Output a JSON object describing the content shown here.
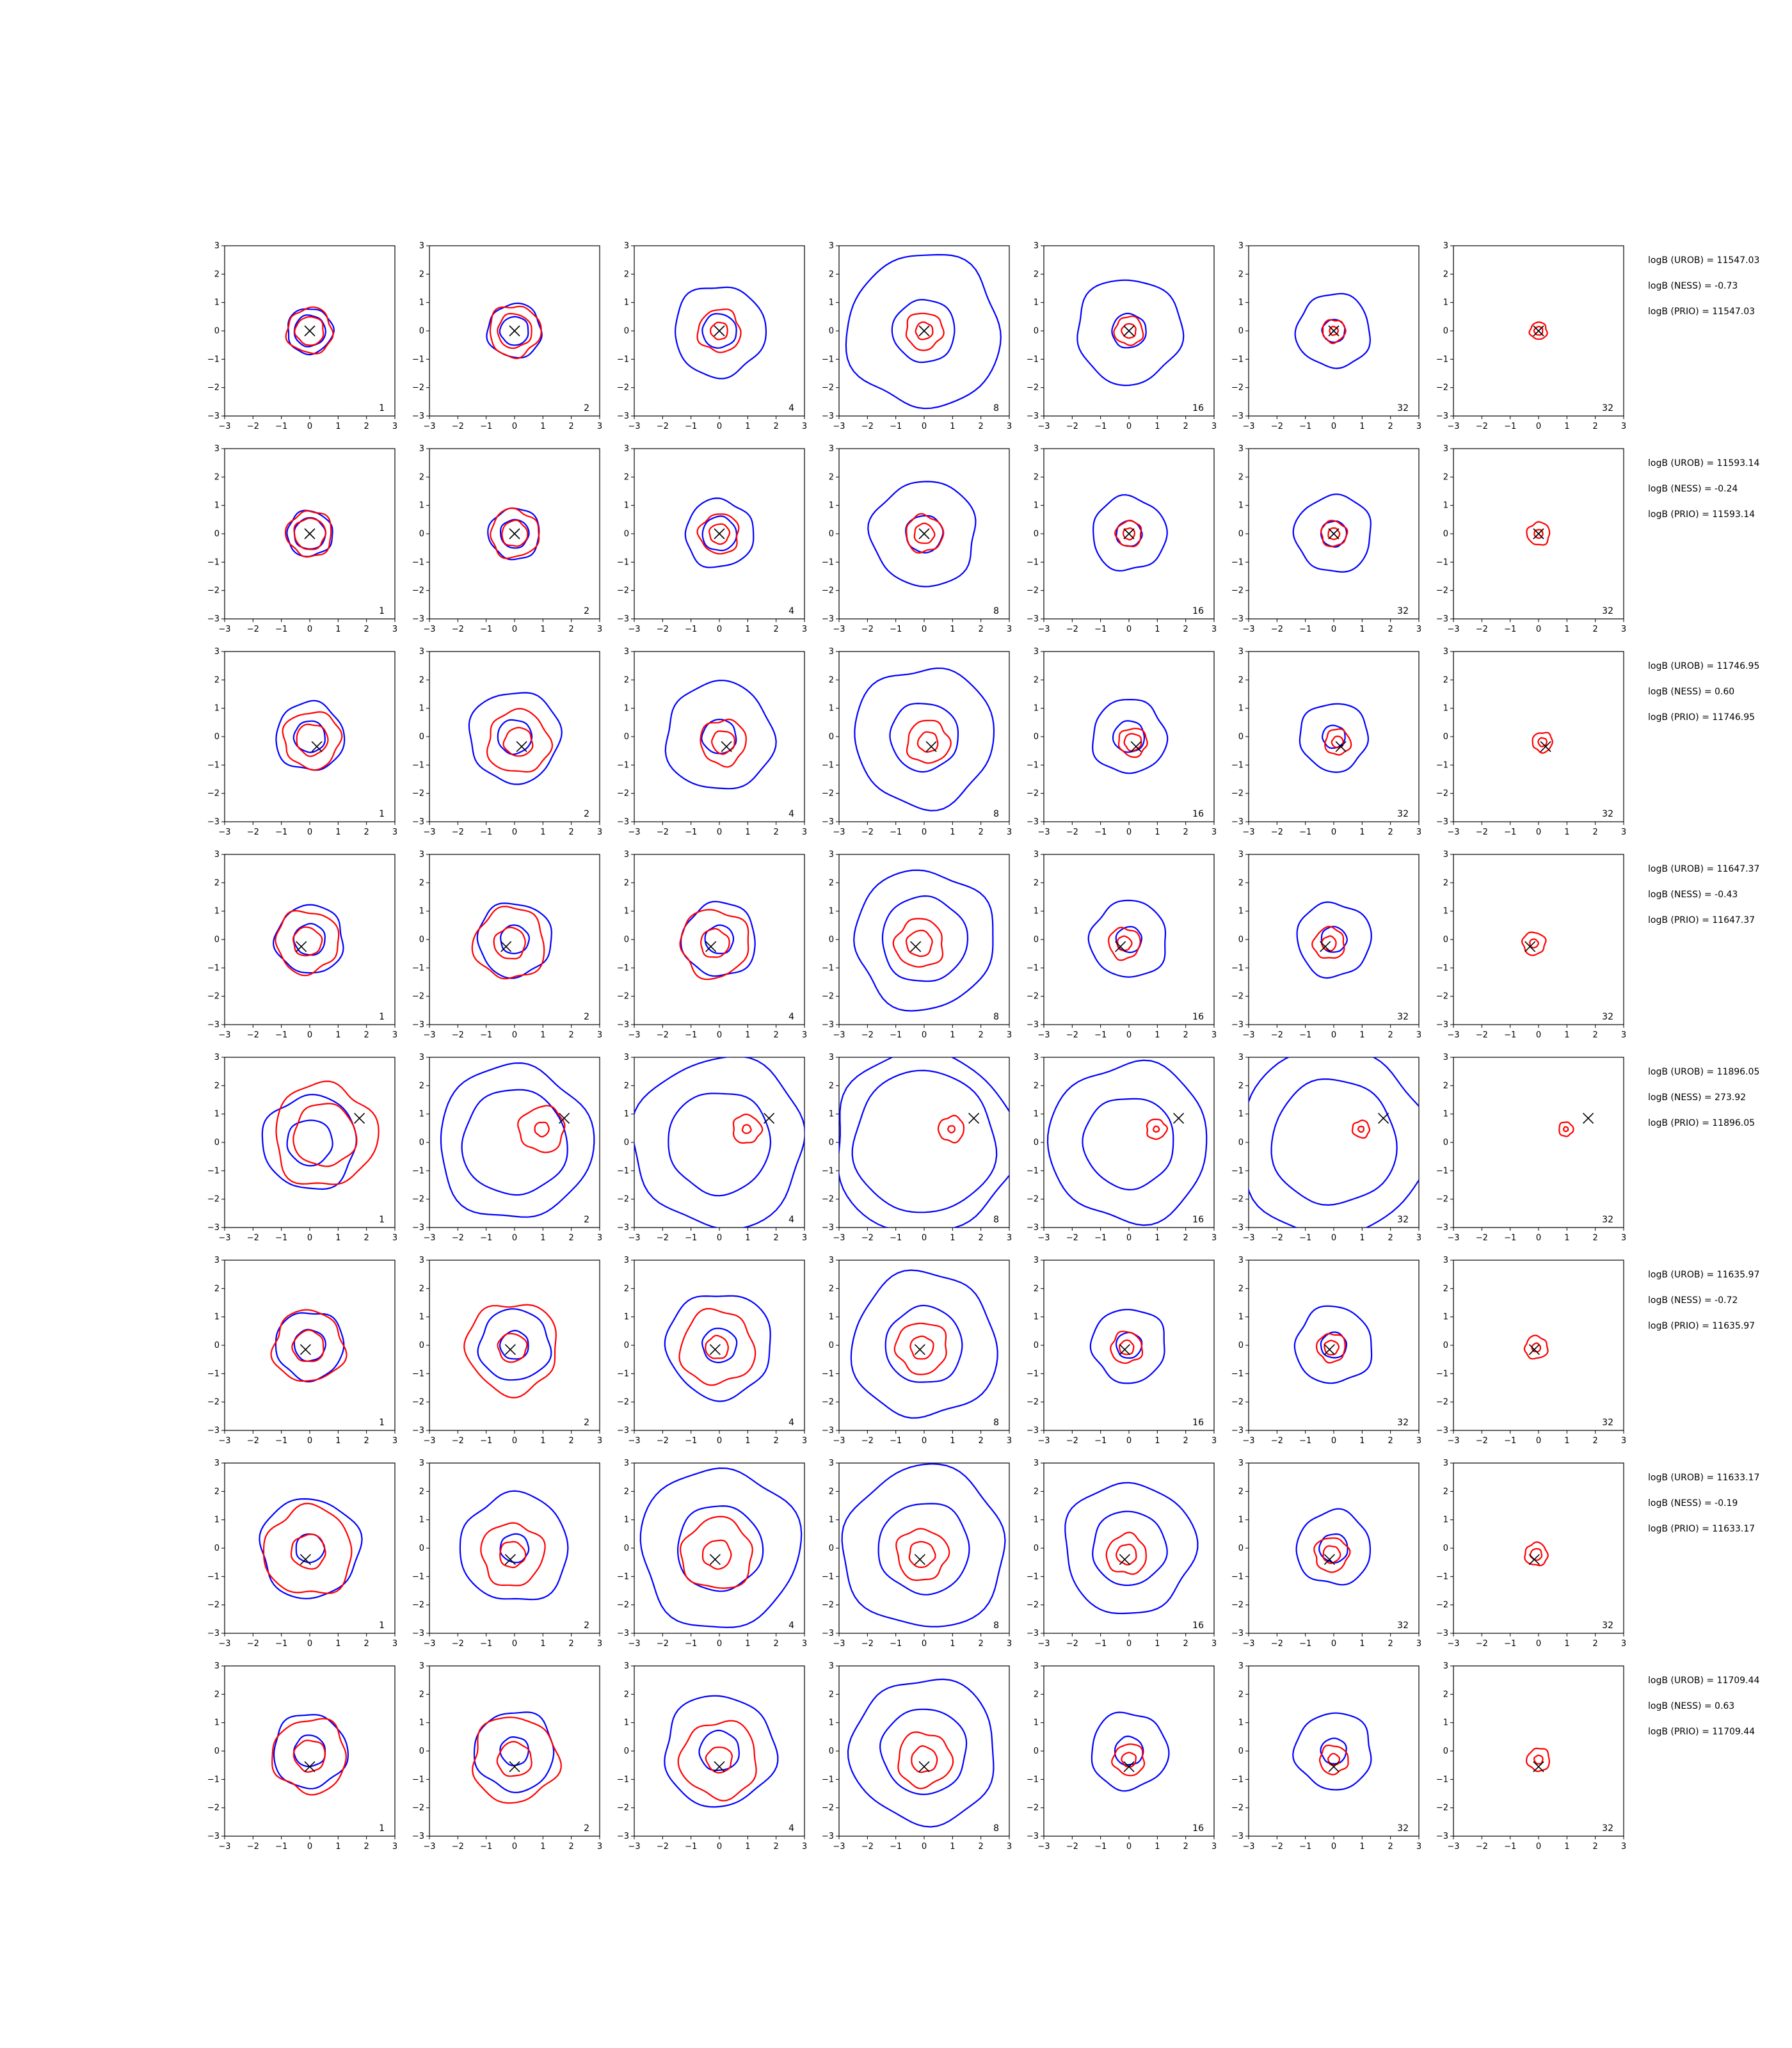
{
  "figure": {
    "rows": 8,
    "columns": 7
  },
  "chart_data": {
    "type": "contour",
    "xlim": [
      -3,
      3
    ],
    "ylim": [
      -3,
      3
    ],
    "ticks": [
      "−3",
      "−2",
      "−1",
      "0",
      "1",
      "2",
      "3"
    ],
    "grid": false,
    "colors": {
      "outer_contour": "#0000ff",
      "inner_contour": "#ff0000",
      "marker": "#000000"
    },
    "column_labels": [
      "1",
      "2",
      "4",
      "8",
      "16",
      "32",
      "32"
    ],
    "rows": [
      {
        "marker": [
          0.0,
          0.0
        ],
        "stats": [
          "logB (UROB) = 11547.03",
          "logB (NESS) = -0.73",
          "logB (PRIO) = 11547.03"
        ],
        "blue_r": [
          [
            0.8,
            0.55
          ],
          [
            0.95,
            0.5
          ],
          [
            1.6,
            0.6
          ],
          [
            2.7,
            1.1
          ],
          [
            1.85,
            0.6
          ],
          [
            1.3,
            0.4
          ],
          [
            0,
            0
          ]
        ],
        "red_r": [
          [
            0.8,
            0.5
          ],
          [
            0.9,
            0.6
          ],
          [
            0.75,
            0.3
          ],
          [
            0.65,
            0.3
          ],
          [
            0.5,
            0.25
          ],
          [
            0.4,
            0.15
          ],
          [
            0.3,
            0.15
          ]
        ]
      },
      {
        "marker": [
          0.0,
          0.0
        ],
        "stats": [
          "logB (UROB) = 11593.14",
          "logB (NESS) = -0.24",
          "logB (PRIO) = 11593.14"
        ],
        "blue_r": [
          [
            0.8,
            0.55
          ],
          [
            0.9,
            0.5
          ],
          [
            1.2,
            0.6
          ],
          [
            1.85,
            0.65
          ],
          [
            1.3,
            0.45
          ],
          [
            1.35,
            0.45
          ],
          [
            0,
            0
          ]
        ],
        "red_r": [
          [
            0.8,
            0.55
          ],
          [
            0.85,
            0.45
          ],
          [
            0.7,
            0.35
          ],
          [
            0.65,
            0.35
          ],
          [
            0.45,
            0.2
          ],
          [
            0.45,
            0.2
          ],
          [
            0.4,
            0.15
          ]
        ]
      },
      {
        "marker": [
          0.25,
          -0.35
        ],
        "stats": [
          "logB (UROB) = 11746.95",
          "logB (NESS) = 0.60",
          "logB (PRIO) = 11746.95"
        ],
        "blue_r": [
          [
            1.2,
            0.55
          ],
          [
            1.6,
            0.6
          ],
          [
            1.9,
            0.6
          ],
          [
            2.45,
            1.2
          ],
          [
            1.3,
            0.55
          ],
          [
            1.2,
            0.4
          ],
          [
            0,
            0
          ]
        ],
        "red_r": [
          [
            1.0,
            0.55
          ],
          [
            1.1,
            0.5
          ],
          [
            0.8,
            0.4
          ],
          [
            0.75,
            0.35
          ],
          [
            0.5,
            0.3
          ],
          [
            0.45,
            0.2
          ],
          [
            0.35,
            0.15
          ]
        ]
      },
      {
        "marker": [
          -0.3,
          -0.25
        ],
        "stats": [
          "logB (UROB) = 11647.37",
          "logB (NESS) = -0.43",
          "logB (PRIO) = 11647.37"
        ],
        "blue_r": [
          [
            1.2,
            0.55
          ],
          [
            1.3,
            0.5
          ],
          [
            1.3,
            0.5
          ],
          [
            2.45,
            1.5
          ],
          [
            1.35,
            0.45
          ],
          [
            1.3,
            0.45
          ],
          [
            0,
            0
          ]
        ],
        "red_r": [
          [
            1.1,
            0.5
          ],
          [
            1.25,
            0.55
          ],
          [
            1.2,
            0.5
          ],
          [
            0.85,
            0.45
          ],
          [
            0.55,
            0.25
          ],
          [
            0.55,
            0.25
          ],
          [
            0.4,
            0.15
          ]
        ]
      },
      {
        "marker": [
          1.75,
          0.85
        ],
        "stats": [
          "logB (UROB) = 11896.05",
          "logB (NESS) = 273.92",
          "logB (PRIO) = 11896.05"
        ],
        "blue_r": [
          [
            1.65,
            0.8
          ],
          [
            2.7,
            1.85
          ],
          [
            3.0,
            1.8
          ],
          [
            3.2,
            2.5
          ],
          [
            2.8,
            1.6
          ],
          [
            3.3,
            2.2
          ],
          [
            0,
            0
          ]
        ],
        "red_r": [
          [
            1.8,
            1.1
          ],
          [
            0.8,
            0.25
          ],
          [
            0.5,
            0.15
          ],
          [
            0.45,
            0.12
          ],
          [
            0.35,
            0.1
          ],
          [
            0.3,
            0.1
          ],
          [
            0.25,
            0.08
          ]
        ]
      },
      {
        "marker": [
          -0.15,
          -0.15
        ],
        "stats": [
          "logB (UROB) = 11635.97",
          "logB (NESS) = -0.72",
          "logB (PRIO) = 11635.97"
        ],
        "blue_r": [
          [
            1.2,
            0.55
          ],
          [
            1.25,
            0.5
          ],
          [
            1.85,
            0.6
          ],
          [
            2.55,
            1.35
          ],
          [
            1.3,
            0.45
          ],
          [
            1.35,
            0.45
          ],
          [
            0,
            0
          ]
        ],
        "red_r": [
          [
            1.25,
            0.55
          ],
          [
            1.6,
            0.5
          ],
          [
            1.3,
            0.4
          ],
          [
            0.9,
            0.4
          ],
          [
            0.55,
            0.25
          ],
          [
            0.5,
            0.25
          ],
          [
            0.4,
            0.15
          ]
        ]
      },
      {
        "marker": [
          -0.15,
          -0.4
        ],
        "stats": [
          "logB (UROB) = 11633.17",
          "logB (NESS) = -0.19",
          "logB (PRIO) = 11633.17"
        ],
        "blue_r": [
          [
            1.75,
            0.5
          ],
          [
            1.9,
            0.5
          ],
          [
            2.8,
            1.5
          ],
          [
            2.85,
            1.6
          ],
          [
            2.3,
            1.3
          ],
          [
            1.3,
            0.5
          ],
          [
            0,
            0
          ]
        ],
        "red_r": [
          [
            1.55,
            0.6
          ],
          [
            1.1,
            0.45
          ],
          [
            1.25,
            0.5
          ],
          [
            0.9,
            0.45
          ],
          [
            0.7,
            0.35
          ],
          [
            0.6,
            0.3
          ],
          [
            0.4,
            0.2
          ]
        ]
      },
      {
        "marker": [
          0.0,
          -0.55
        ],
        "stats": [
          "logB (UROB) = 11709.44",
          "logB (NESS) = 0.63",
          "logB (PRIO) = 11709.44"
        ],
        "blue_r": [
          [
            1.3,
            0.55
          ],
          [
            1.4,
            0.5
          ],
          [
            1.95,
            0.7
          ],
          [
            2.55,
            1.5
          ],
          [
            1.35,
            0.5
          ],
          [
            1.35,
            0.45
          ],
          [
            0,
            0
          ]
        ],
        "red_r": [
          [
            1.3,
            0.55
          ],
          [
            1.5,
            0.6
          ],
          [
            1.35,
            0.45
          ],
          [
            0.95,
            0.45
          ],
          [
            0.55,
            0.25
          ],
          [
            0.5,
            0.2
          ],
          [
            0.4,
            0.15
          ]
        ]
      }
    ]
  }
}
